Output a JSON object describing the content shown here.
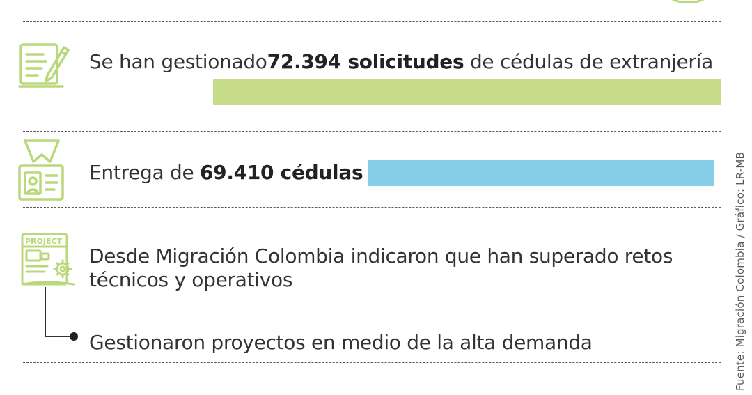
{
  "items": [
    {
      "pre": "Se han gestionado",
      "bold": "72.394 solicitudes",
      "post": " de cédulas de extranjería",
      "icon": "document-edit-icon",
      "bar_color": "#c7dd8a"
    },
    {
      "pre": "Entrega de ",
      "bold": "69.410 cédulas",
      "post": "",
      "icon": "id-badge-icon",
      "bar_color": "#86cde6"
    },
    {
      "line1": "Desde Migración Colombia indicaron que han superado retos",
      "line2": "técnicos y operativos",
      "icon": "project-gear-icon",
      "icon_label": "PROJECT"
    }
  ],
  "sub_item": "Gestionaron proyectos en medio de la alta demanda",
  "source": "Fuente: Migración Colombia / Gráfico: LR-MB",
  "colors": {
    "icon_green": "#b9d87a",
    "divider": "#5a5a5a"
  }
}
